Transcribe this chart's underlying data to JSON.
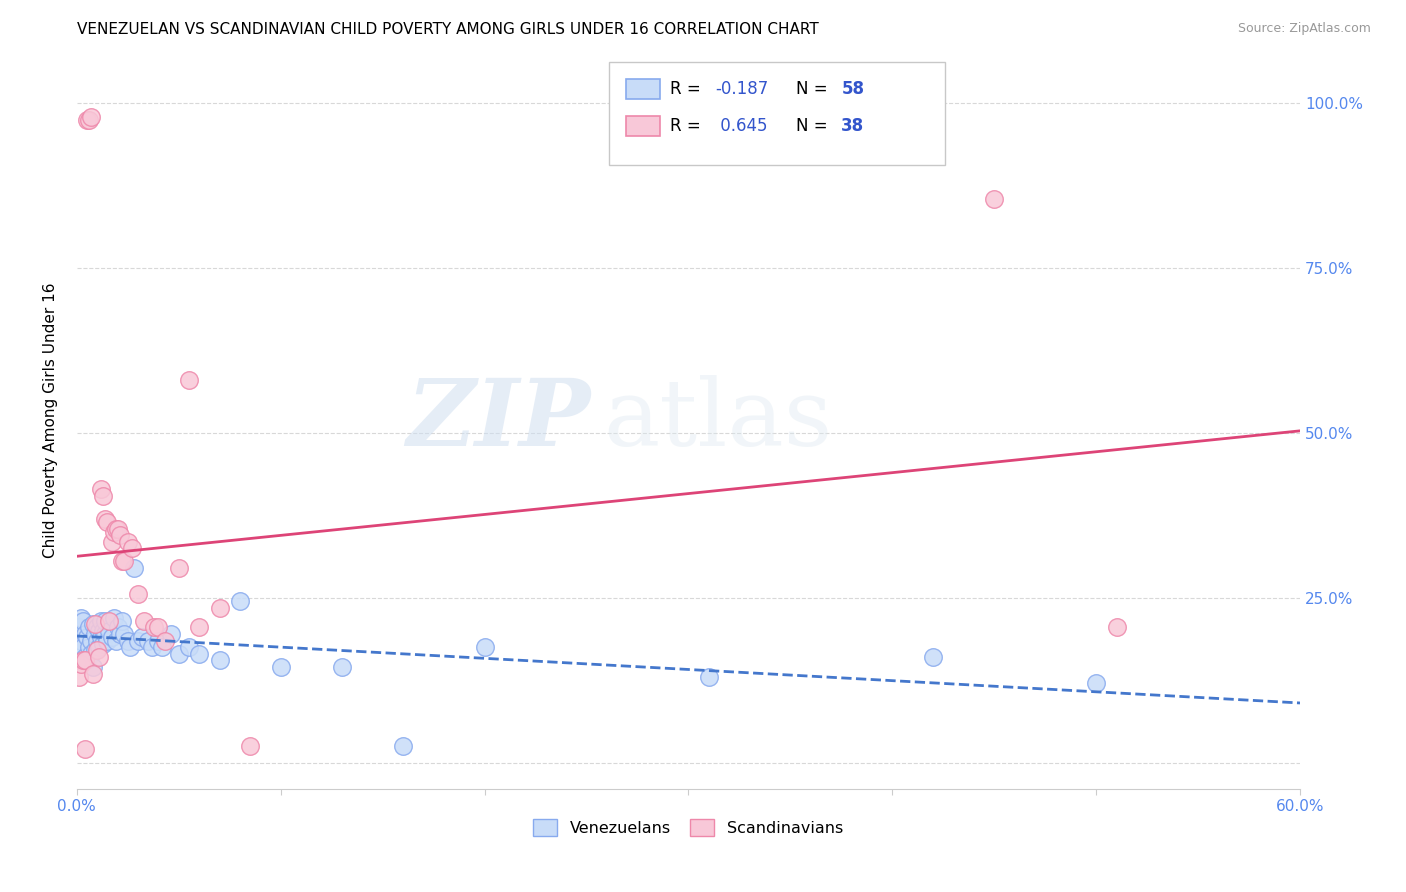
{
  "title": "VENEZUELAN VS SCANDINAVIAN CHILD POVERTY AMONG GIRLS UNDER 16 CORRELATION CHART",
  "source": "Source: ZipAtlas.com",
  "ylabel": "Child Poverty Among Girls Under 16",
  "R_venezuelan": -0.187,
  "N_venezuelan": 58,
  "R_scandinavian": 0.645,
  "N_scandinavian": 38,
  "color_venezuelan": "#c8dcf8",
  "color_scandinavian": "#f8c8d8",
  "edge_color_venezuelan": "#88aaee",
  "edge_color_scandinavian": "#ee88aa",
  "line_color_venezuelan": "#4477cc",
  "line_color_scandinavian": "#dd4477",
  "watermark_zip": "ZIP",
  "watermark_atlas": "atlas",
  "legend_label_venezuelan": "Venezuelans",
  "legend_label_scandinavian": "Scandinavians",
  "xlim": [
    0.0,
    0.6
  ],
  "ylim": [
    -0.04,
    1.08
  ],
  "venezuelan_x": [
    0.001,
    0.002,
    0.002,
    0.003,
    0.003,
    0.004,
    0.004,
    0.005,
    0.005,
    0.006,
    0.006,
    0.007,
    0.007,
    0.008,
    0.008,
    0.009,
    0.009,
    0.01,
    0.01,
    0.011,
    0.011,
    0.012,
    0.012,
    0.013,
    0.013,
    0.014,
    0.014,
    0.015,
    0.016,
    0.017,
    0.018,
    0.019,
    0.02,
    0.021,
    0.022,
    0.023,
    0.025,
    0.026,
    0.028,
    0.03,
    0.032,
    0.035,
    0.037,
    0.04,
    0.042,
    0.046,
    0.05,
    0.055,
    0.06,
    0.07,
    0.08,
    0.1,
    0.13,
    0.16,
    0.2,
    0.31,
    0.42,
    0.5
  ],
  "venezuelan_y": [
    0.205,
    0.22,
    0.185,
    0.215,
    0.175,
    0.195,
    0.16,
    0.19,
    0.155,
    0.205,
    0.175,
    0.185,
    0.165,
    0.21,
    0.145,
    0.195,
    0.17,
    0.205,
    0.185,
    0.175,
    0.2,
    0.19,
    0.215,
    0.18,
    0.2,
    0.195,
    0.215,
    0.185,
    0.2,
    0.19,
    0.22,
    0.185,
    0.205,
    0.195,
    0.215,
    0.195,
    0.185,
    0.175,
    0.295,
    0.185,
    0.19,
    0.185,
    0.175,
    0.185,
    0.175,
    0.195,
    0.165,
    0.175,
    0.165,
    0.155,
    0.245,
    0.145,
    0.145,
    0.025,
    0.175,
    0.13,
    0.16,
    0.12
  ],
  "scandinavian_x": [
    0.001,
    0.002,
    0.003,
    0.004,
    0.004,
    0.005,
    0.006,
    0.007,
    0.008,
    0.009,
    0.01,
    0.011,
    0.012,
    0.013,
    0.014,
    0.015,
    0.016,
    0.017,
    0.018,
    0.019,
    0.02,
    0.021,
    0.022,
    0.023,
    0.025,
    0.027,
    0.03,
    0.033,
    0.038,
    0.04,
    0.043,
    0.05,
    0.055,
    0.06,
    0.07,
    0.085,
    0.45,
    0.51
  ],
  "scandinavian_y": [
    0.13,
    0.15,
    0.155,
    0.155,
    0.02,
    0.975,
    0.975,
    0.98,
    0.135,
    0.21,
    0.17,
    0.16,
    0.415,
    0.405,
    0.37,
    0.365,
    0.215,
    0.335,
    0.35,
    0.355,
    0.355,
    0.345,
    0.305,
    0.305,
    0.335,
    0.325,
    0.255,
    0.215,
    0.205,
    0.205,
    0.185,
    0.295,
    0.58,
    0.205,
    0.235,
    0.025,
    0.855,
    0.205
  ]
}
